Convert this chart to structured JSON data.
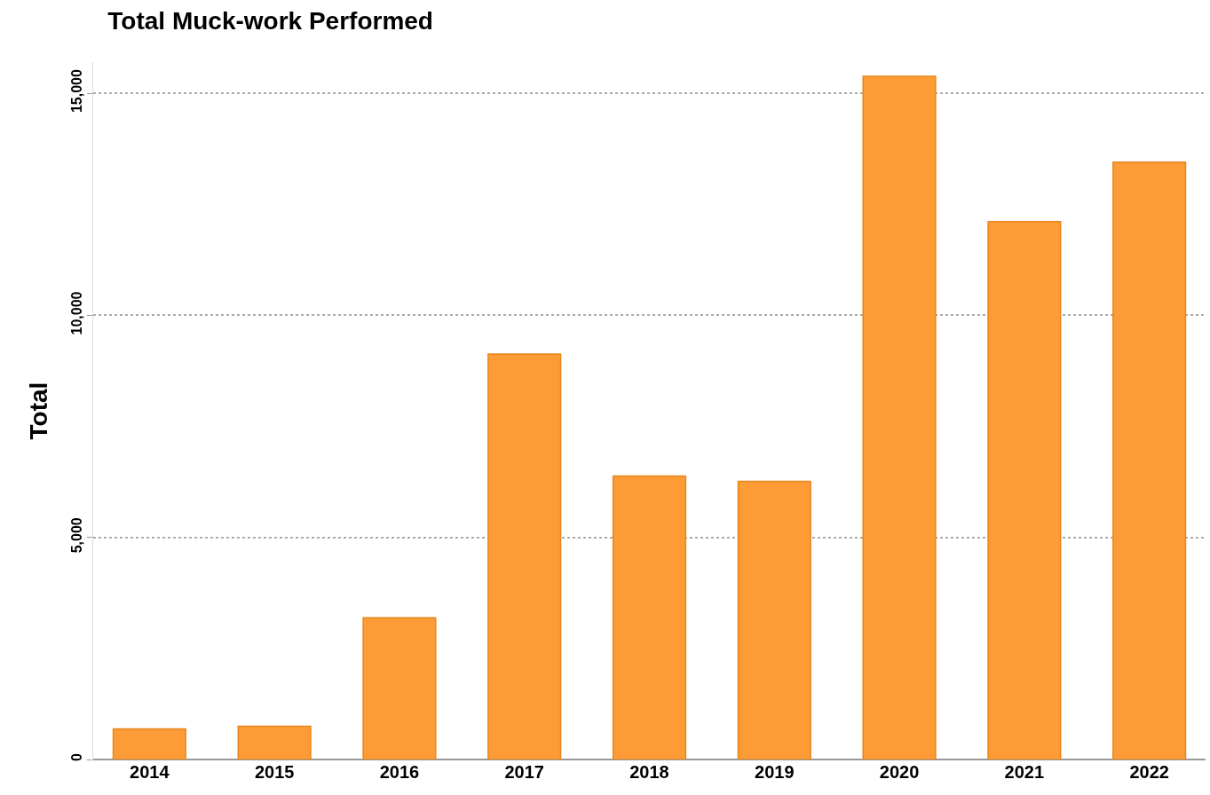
{
  "chart_data": {
    "type": "bar",
    "title": "Total Muck-work Performed",
    "ylabel": "Total",
    "categories": [
      "2014",
      "2015",
      "2016",
      "2017",
      "2018",
      "2019",
      "2020",
      "2021",
      "2022"
    ],
    "values": [
      690,
      750,
      3190,
      9130,
      6380,
      6260,
      15380,
      12110,
      13450
    ],
    "color": "#fd9b37",
    "ylim": [
      0,
      15700
    ],
    "yticks": [
      0,
      {
        "value": 5000,
        "label": "5,000"
      },
      {
        "value": 10000,
        "label": "10,000"
      },
      {
        "value": 15000,
        "label": "15,000"
      }
    ],
    "grid": "y"
  }
}
